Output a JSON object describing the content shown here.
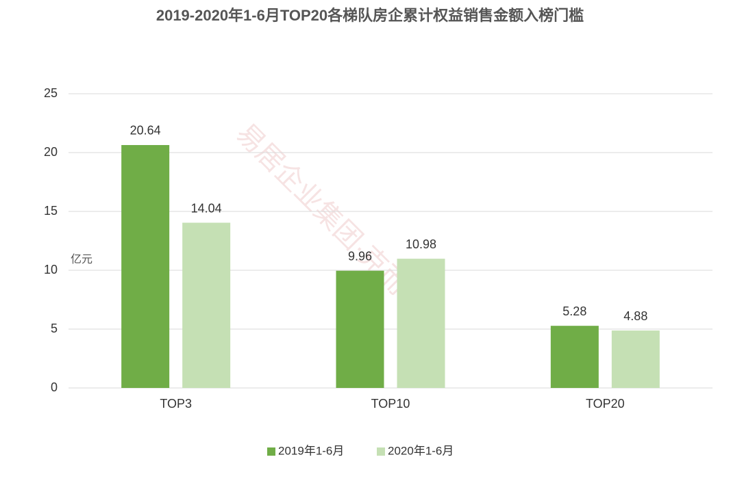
{
  "chart_data": {
    "type": "bar",
    "title": "2019-2020年1-6月TOP20各梯队房企累计权益销售金额入榜门槛",
    "unit_label": "亿元",
    "watermark": "易居企业集团·克而瑞",
    "categories": [
      "TOP3",
      "TOP10",
      "TOP20"
    ],
    "series": [
      {
        "name": "2019年1-6月",
        "color": "#70ad47",
        "values": [
          20.64,
          9.96,
          5.28
        ]
      },
      {
        "name": "2020年1-6月",
        "color": "#c5e0b4",
        "values": [
          14.04,
          10.98,
          4.88
        ]
      }
    ],
    "ylim": [
      0,
      25
    ],
    "yticks": [
      0,
      5,
      10,
      15,
      20,
      25
    ],
    "grid": true,
    "legend": "bottom"
  }
}
